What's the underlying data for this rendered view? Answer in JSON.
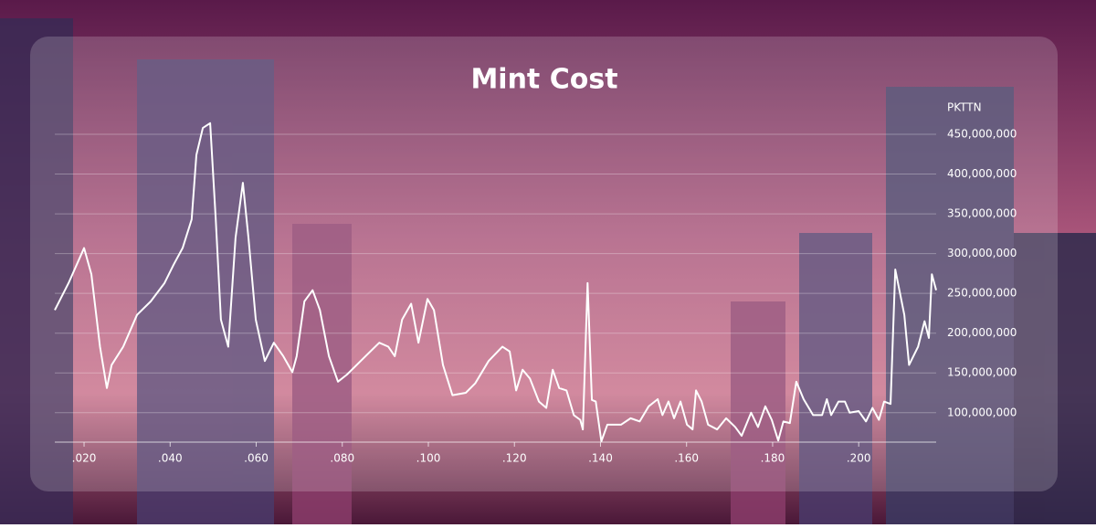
{
  "chart_data": {
    "type": "line",
    "title": "Mint Cost",
    "y_label": "PKTTN",
    "x": [
      0.0132,
      0.0164,
      0.02,
      0.0217,
      0.0237,
      0.0253,
      0.0264,
      0.0291,
      0.0323,
      0.0355,
      0.0387,
      0.0408,
      0.0429,
      0.045,
      0.0461,
      0.0476,
      0.0493,
      0.0506,
      0.0518,
      0.0535,
      0.0552,
      0.0569,
      0.0582,
      0.0599,
      0.062,
      0.0641,
      0.0663,
      0.0684,
      0.0694,
      0.0712,
      0.0731,
      0.0748,
      0.0769,
      0.079,
      0.0811,
      0.0854,
      0.0886,
      0.0907,
      0.0922,
      0.0939,
      0.096,
      0.0977,
      0.0998,
      0.1013,
      0.1034,
      0.1056,
      0.1087,
      0.1109,
      0.114,
      0.1172,
      0.1189,
      0.1204,
      0.1219,
      0.1236,
      0.1257,
      0.1274,
      0.1289,
      0.1304,
      0.1321,
      0.1338,
      0.1353,
      0.1359,
      0.137,
      0.138,
      0.1389,
      0.1402,
      0.1416,
      0.1448,
      0.147,
      0.1491,
      0.1512,
      0.1533,
      0.1544,
      0.1558,
      0.1571,
      0.1586,
      0.1601,
      0.1614,
      0.1622,
      0.1635,
      0.165,
      0.1671,
      0.1692,
      0.1713,
      0.1728,
      0.175,
      0.1766,
      0.1783,
      0.1798,
      0.1813,
      0.1825,
      0.184,
      0.1855,
      0.1872,
      0.1894,
      0.1915,
      0.1926,
      0.1936,
      0.1953,
      0.1968,
      0.1979,
      0.2,
      0.2017,
      0.2032,
      0.2047,
      0.2059,
      0.2074,
      0.2085,
      0.2106,
      0.2117,
      0.2138,
      0.2153,
      0.2163,
      0.217,
      0.218
    ],
    "series": [
      {
        "color": "#ffffff",
        "values": [
          229000000,
          263000000,
          307000000,
          274000000,
          183000000,
          131000000,
          160000000,
          183000000,
          223000000,
          240000000,
          263000000,
          286000000,
          307000000,
          343000000,
          424000000,
          458000000,
          464000000,
          343000000,
          217000000,
          183000000,
          320000000,
          389000000,
          320000000,
          217000000,
          165000000,
          188000000,
          171000000,
          151000000,
          171000000,
          240000000,
          254000000,
          229000000,
          171000000,
          139000000,
          148000000,
          171000000,
          188000000,
          183000000,
          171000000,
          217000000,
          237000000,
          188000000,
          243000000,
          229000000,
          160000000,
          122000000,
          125000000,
          137000000,
          165000000,
          183000000,
          177000000,
          128000000,
          154000000,
          143000000,
          114000000,
          106000000,
          154000000,
          131000000,
          128000000,
          97000000,
          91000000,
          79000000,
          263000000,
          116000000,
          114000000,
          64000000,
          85000000,
          85000000,
          93000000,
          89000000,
          108000000,
          117000000,
          97000000,
          114000000,
          93000000,
          114000000,
          85000000,
          79000000,
          128000000,
          114000000,
          85000000,
          79000000,
          93000000,
          82000000,
          71000000,
          100000000,
          82000000,
          108000000,
          91000000,
          65000000,
          89000000,
          87000000,
          139000000,
          117000000,
          97000000,
          97000000,
          117000000,
          97000000,
          114000000,
          114000000,
          100000000,
          102000000,
          89000000,
          106000000,
          91000000,
          114000000,
          111000000,
          280000000,
          223000000,
          160000000,
          183000000,
          215000000,
          194000000,
          274000000,
          254000000
        ]
      }
    ],
    "xlim": [
      0.0132,
      0.218
    ],
    "xticks": [
      {
        "value": 0.02,
        "label": ".020"
      },
      {
        "value": 0.04,
        "label": ".040"
      },
      {
        "value": 0.06,
        "label": ".060"
      },
      {
        "value": 0.08,
        "label": ".080"
      },
      {
        "value": 0.1,
        "label": ".100"
      },
      {
        "value": 0.12,
        "label": ".120"
      },
      {
        "value": 0.14,
        "label": ".140"
      },
      {
        "value": 0.16,
        "label": ".160"
      },
      {
        "value": 0.18,
        "label": ".180"
      },
      {
        "value": 0.2,
        "label": ".200"
      }
    ],
    "ylim": [
      63000000,
      470000000
    ],
    "yticks": [
      {
        "value": 100000000,
        "label": "100,000,000"
      },
      {
        "value": 150000000,
        "label": "150,000,000"
      },
      {
        "value": 200000000,
        "label": "200,000,000"
      },
      {
        "value": 250000000,
        "label": "250,000,000"
      },
      {
        "value": 300000000,
        "label": "300,000,000"
      },
      {
        "value": 350000000,
        "label": "350,000,000"
      },
      {
        "value": 400000000,
        "label": "400,000,000"
      },
      {
        "value": 450000000,
        "label": "450,000,000"
      }
    ],
    "grid": true
  }
}
